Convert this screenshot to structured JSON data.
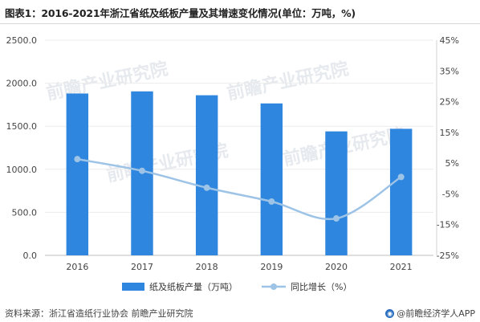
{
  "header": {
    "title": "图表1：2016-2021年浙江省纸及纸板产量及其增速变化情况(单位：万吨，%)"
  },
  "footer": {
    "source": "资料来源：浙江省造纸行业协会 前瞻产业研究院",
    "brand": "@前瞻经济学人APP"
  },
  "watermark": {
    "text": "前瞻产业研究院"
  },
  "chart_data": {
    "type": "bar",
    "categories": [
      "2016",
      "2017",
      "2018",
      "2019",
      "2020",
      "2021"
    ],
    "series": [
      {
        "name": "纸及纸板产量（万吨）",
        "type": "bar",
        "axis": "left",
        "color": "#2e86de",
        "values": [
          1880,
          1905,
          1860,
          1765,
          1440,
          1470
        ]
      },
      {
        "name": "同比增长（%）",
        "type": "line",
        "axis": "right",
        "color": "#9dc3e6",
        "values": [
          6.3,
          2.5,
          -3.0,
          -7.5,
          -13.0,
          0.5
        ]
      }
    ],
    "ylim_left": [
      0,
      2500
    ],
    "yticks_left": [
      "0.0",
      "500.0",
      "1000.0",
      "1500.0",
      "2000.0",
      "2500.0"
    ],
    "ylim_right": [
      -25,
      45
    ],
    "yticks_right": [
      "-25%",
      "-15%",
      "-5%",
      "5%",
      "15%",
      "25%",
      "35%",
      "45%"
    ],
    "grid": true,
    "legend_position": "bottom"
  }
}
